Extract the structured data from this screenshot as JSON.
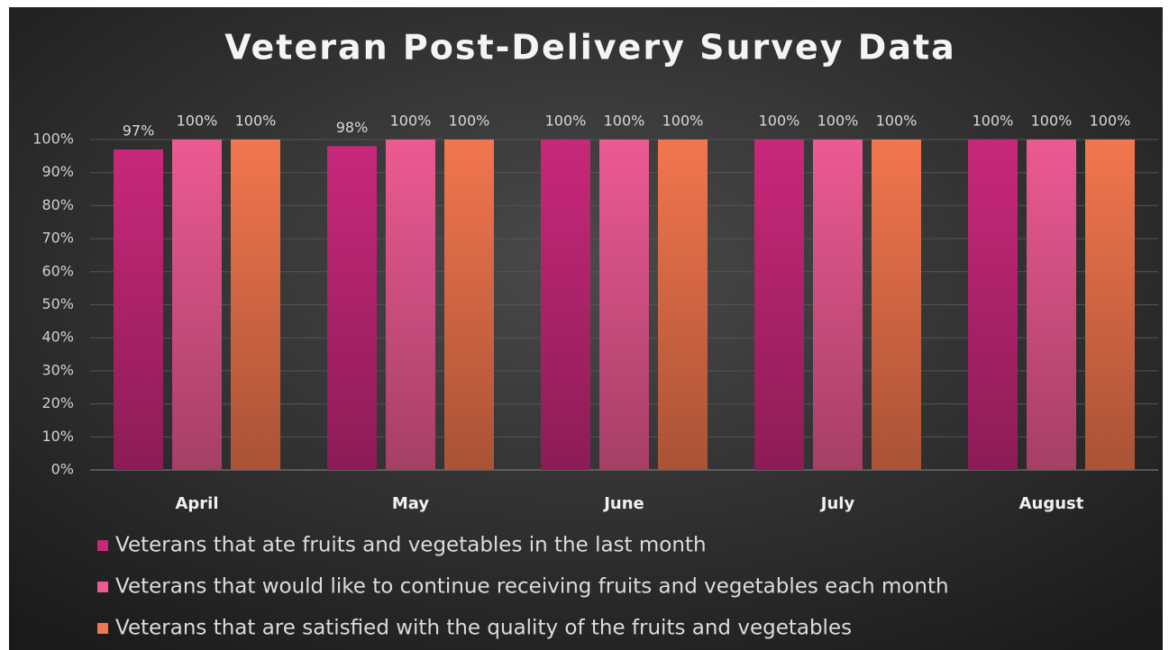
{
  "chart_data": {
    "type": "bar",
    "title": "Veteran Post-Delivery Survey Data",
    "categories": [
      "April",
      "May",
      "June",
      "July",
      "August"
    ],
    "series": [
      {
        "name": "Veterans that ate fruits and vegetables in the last month",
        "color": "#c8287a",
        "values": [
          97,
          98,
          100,
          100,
          100
        ],
        "value_labels": [
          "97%",
          "98%",
          "100%",
          "100%",
          "100%"
        ]
      },
      {
        "name": "Veterans that would like to continue receiving fruits and vegetables each month",
        "color": "#ec5a92",
        "values": [
          100,
          100,
          100,
          100,
          100
        ],
        "value_labels": [
          "100%",
          "100%",
          "100%",
          "100%",
          "100%"
        ]
      },
      {
        "name": "Veterans that are satisfied with the quality of the fruits and vegetables",
        "color": "#f2764e",
        "values": [
          100,
          100,
          100,
          100,
          100
        ],
        "value_labels": [
          "100%",
          "100%",
          "100%",
          "100%",
          "100%"
        ]
      }
    ],
    "ylim": [
      0,
      100
    ],
    "yticks": [
      {
        "value": 0,
        "label": "0%"
      },
      {
        "value": 10,
        "label": "10%"
      },
      {
        "value": 20,
        "label": "20%"
      },
      {
        "value": 30,
        "label": "30%"
      },
      {
        "value": 40,
        "label": "40%"
      },
      {
        "value": 50,
        "label": "50%"
      },
      {
        "value": 60,
        "label": "60%"
      },
      {
        "value": 70,
        "label": "70%"
      },
      {
        "value": 80,
        "label": "80%"
      },
      {
        "value": 90,
        "label": "90%"
      },
      {
        "value": 100,
        "label": "100%"
      }
    ],
    "grid": true
  }
}
